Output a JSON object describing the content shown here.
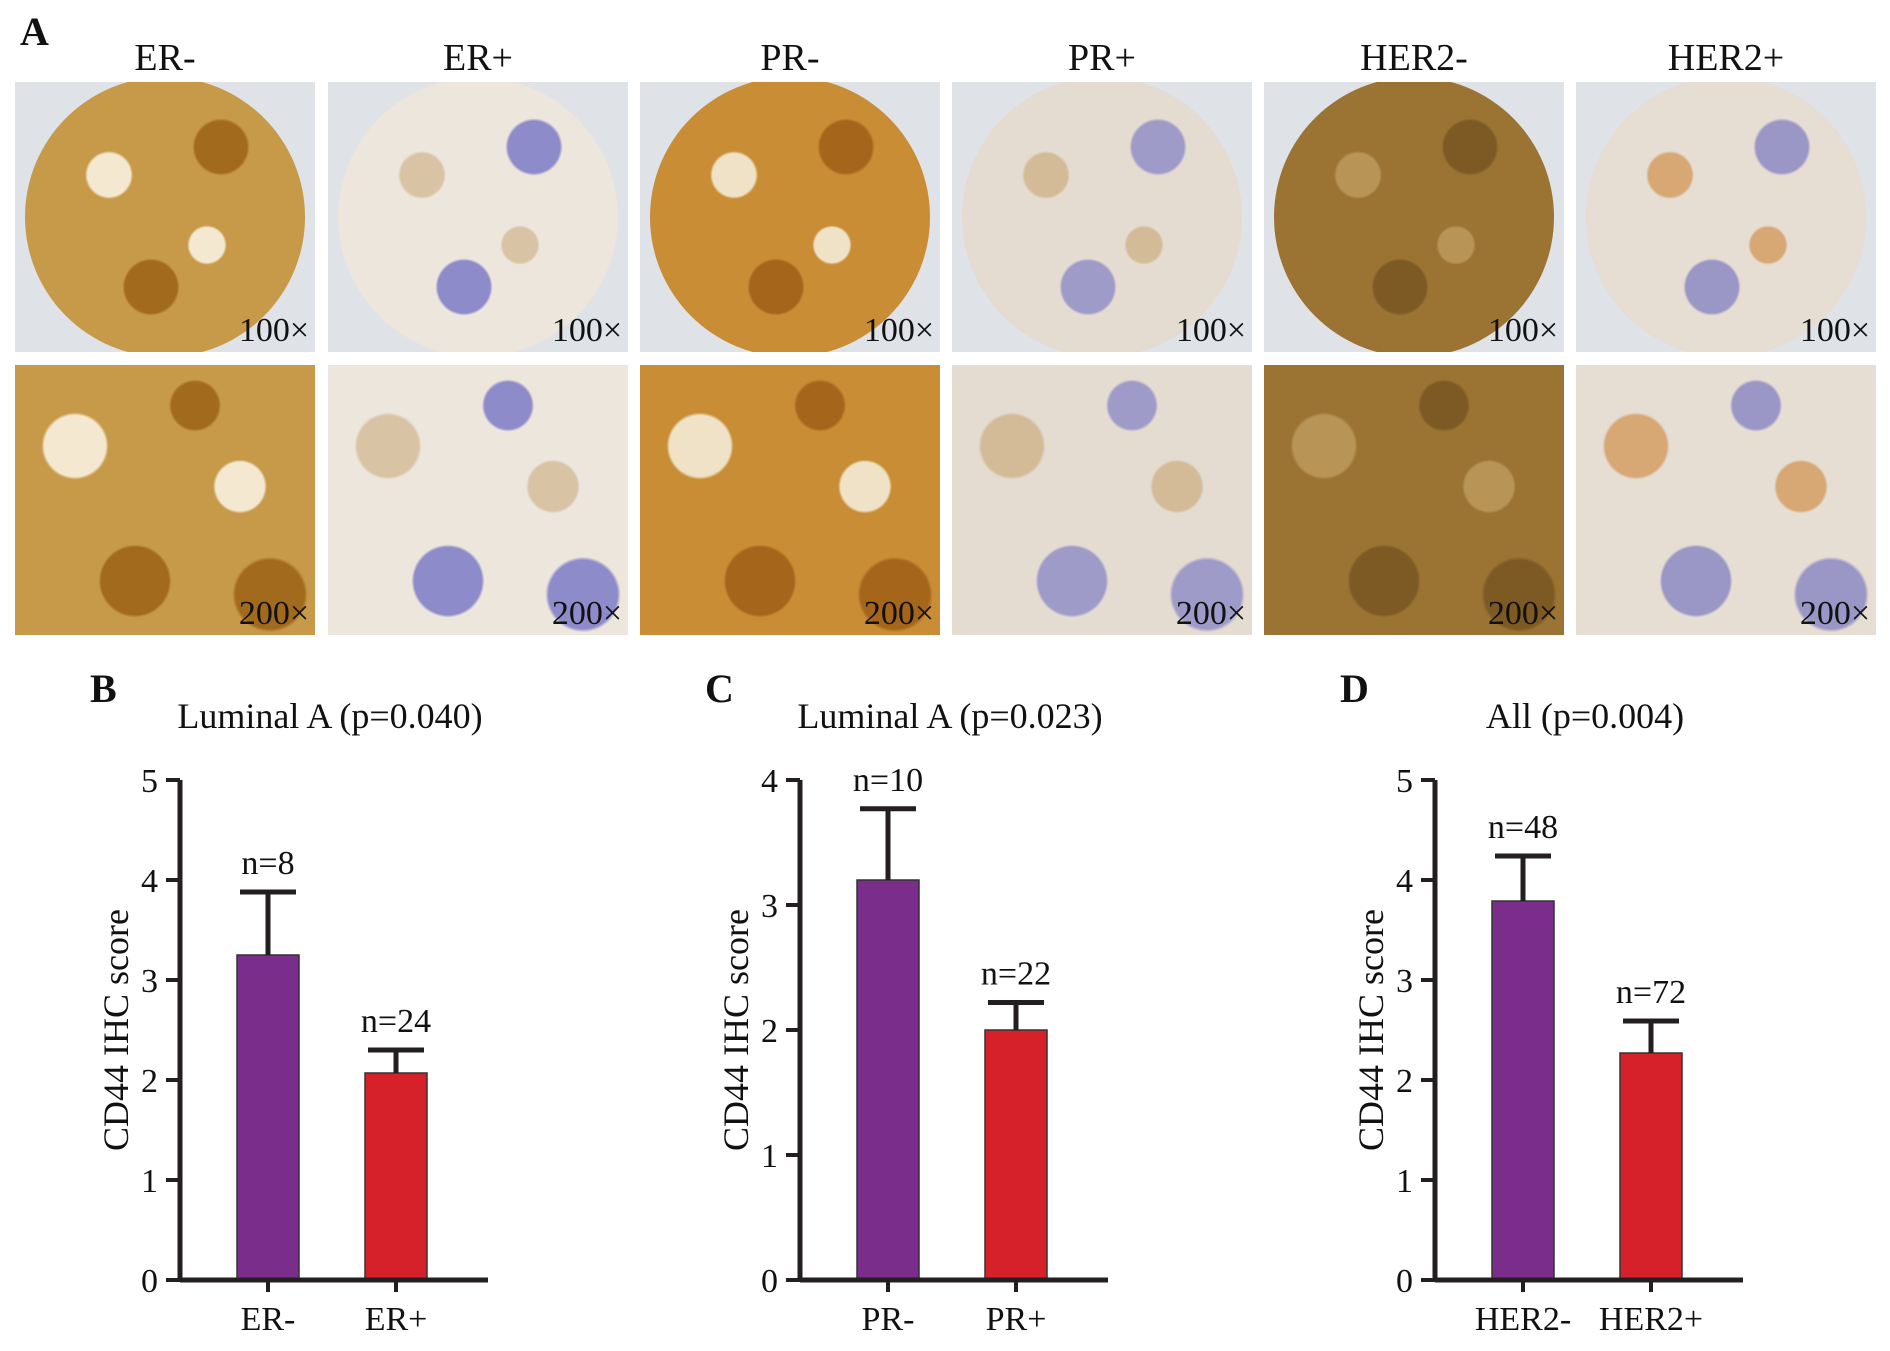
{
  "panels": {
    "a": "A",
    "b": "B",
    "c": "C",
    "d": "D"
  },
  "micrographs": {
    "columns": [
      "ER-",
      "ER+",
      "PR-",
      "PR+",
      "HER2-",
      "HER2+"
    ],
    "row1_mag": "100×",
    "row2_mag": "200×"
  },
  "chart_data": [
    {
      "type": "bar",
      "title": "Luminal A (p=0.040)",
      "ylabel": "CD44 IHC score",
      "xlabel": "",
      "ylim": [
        0,
        5
      ],
      "yticks": [
        0,
        1,
        2,
        3,
        4,
        5
      ],
      "categories": [
        "ER-",
        "ER+"
      ],
      "values": [
        3.25,
        2.07
      ],
      "error_upper": [
        3.88,
        2.3
      ],
      "annotations": [
        "n=8",
        "n=24"
      ],
      "colors": [
        "#7b2d8b",
        "#d6202a"
      ]
    },
    {
      "type": "bar",
      "title": "Luminal A (p=0.023)",
      "ylabel": "CD44 IHC score",
      "xlabel": "",
      "ylim": [
        0,
        4
      ],
      "yticks": [
        0,
        1,
        2,
        3,
        4
      ],
      "categories": [
        "PR-",
        "PR+"
      ],
      "values": [
        3.2,
        2.0
      ],
      "error_upper": [
        3.77,
        2.22
      ],
      "annotations": [
        "n=10",
        "n=22"
      ],
      "colors": [
        "#7b2d8b",
        "#d6202a"
      ]
    },
    {
      "type": "bar",
      "title": "All (p=0.004)",
      "ylabel": "CD44 IHC score",
      "xlabel": "",
      "ylim": [
        0,
        5
      ],
      "yticks": [
        0,
        1,
        2,
        3,
        4,
        5
      ],
      "categories": [
        "HER2-",
        "HER2+"
      ],
      "values": [
        3.79,
        2.27
      ],
      "error_upper": [
        4.24,
        2.59
      ],
      "annotations": [
        "n=48",
        "n=72"
      ],
      "colors": [
        "#7b2d8b",
        "#d6202a"
      ]
    }
  ]
}
